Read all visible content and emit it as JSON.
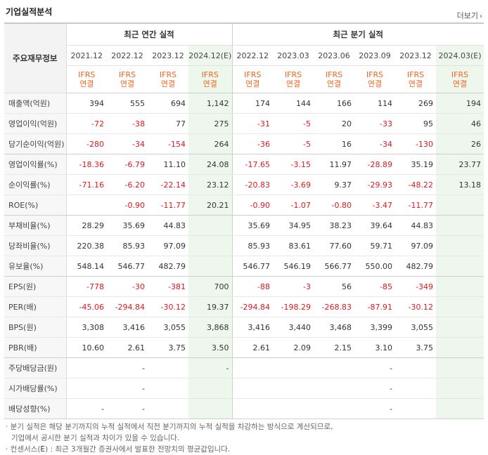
{
  "section_title": "기업실적분석",
  "more_label": "더보기",
  "corner_label": "주요재무정보",
  "groups": {
    "annual": "최근 연간 실적",
    "quarter": "최근 분기 실적"
  },
  "periods": [
    "2021.12",
    "2022.12",
    "2023.12",
    "2024.12(E)",
    "2022.12",
    "2023.03",
    "2023.06",
    "2023.09",
    "2023.12",
    "2024.03(E)"
  ],
  "basis": {
    "line1": "IFRS",
    "line2": "연결"
  },
  "rows": [
    {
      "label": "매출액(억원)",
      "values": [
        "394",
        "555",
        "694",
        "1,142",
        "174",
        "144",
        "166",
        "114",
        "269",
        "194"
      ]
    },
    {
      "label": "영업이익(억원)",
      "values": [
        "-72",
        "-38",
        "77",
        "275",
        "-31",
        "-5",
        "20",
        "-33",
        "95",
        "46"
      ]
    },
    {
      "label": "당기순이익(억원)",
      "values": [
        "-280",
        "-34",
        "-154",
        "264",
        "-36",
        "-5",
        "16",
        "-34",
        "-130",
        "26"
      ]
    },
    {
      "label": "영업이익률(%)",
      "values": [
        "-18.36",
        "-6.79",
        "11.10",
        "24.08",
        "-17.65",
        "-3.15",
        "11.97",
        "-28.89",
        "35.19",
        "23.77"
      ]
    },
    {
      "label": "순이익률(%)",
      "values": [
        "-71.16",
        "-6.20",
        "-22.14",
        "23.12",
        "-20.83",
        "-3.69",
        "9.37",
        "-29.93",
        "-48.22",
        "13.18"
      ]
    },
    {
      "label": "ROE(%)",
      "values": [
        "",
        "-0.90",
        "-11.77",
        "20.21",
        "-0.90",
        "-1.07",
        "-0.80",
        "-3.47",
        "-11.77",
        ""
      ]
    },
    {
      "label": "부채비율(%)",
      "values": [
        "28.29",
        "35.69",
        "44.83",
        "",
        "35.69",
        "34.95",
        "38.23",
        "39.64",
        "44.83",
        ""
      ]
    },
    {
      "label": "당좌비율(%)",
      "values": [
        "220.38",
        "85.93",
        "97.09",
        "",
        "85.93",
        "83.61",
        "77.60",
        "59.71",
        "97.09",
        ""
      ]
    },
    {
      "label": "유보율(%)",
      "values": [
        "548.14",
        "546.77",
        "482.79",
        "",
        "546.77",
        "546.19",
        "566.77",
        "550.00",
        "482.79",
        ""
      ]
    },
    {
      "label": "EPS(원)",
      "values": [
        "-778",
        "-30",
        "-381",
        "700",
        "-88",
        "-3",
        "56",
        "-85",
        "-349",
        ""
      ]
    },
    {
      "label": "PER(배)",
      "values": [
        "-45.06",
        "-294.84",
        "-30.12",
        "19.37",
        "-294.84",
        "-198.29",
        "-268.83",
        "-87.91",
        "-30.12",
        ""
      ]
    },
    {
      "label": "BPS(원)",
      "values": [
        "3,308",
        "3,416",
        "3,055",
        "3,868",
        "3,416",
        "3,440",
        "3,468",
        "3,399",
        "3,055",
        ""
      ]
    },
    {
      "label": "PBR(배)",
      "values": [
        "10.60",
        "2.61",
        "3.75",
        "3.50",
        "2.61",
        "2.09",
        "2.15",
        "3.10",
        "3.75",
        ""
      ]
    },
    {
      "label": "주당배당금(원)",
      "values": [
        "",
        "-",
        "",
        "-",
        "",
        "",
        "",
        "-",
        "",
        ""
      ]
    },
    {
      "label": "시가배당률(%)",
      "values": [
        "",
        "-",
        "",
        "",
        "",
        "",
        "",
        "-",
        "",
        ""
      ]
    },
    {
      "label": "배당성향(%)",
      "values": [
        "-",
        "-",
        "",
        "",
        "",
        "",
        "",
        "-",
        "",
        ""
      ]
    }
  ],
  "group_end_rows": [
    2,
    5,
    8,
    12
  ],
  "notes": {
    "line1": "· 분기 실적은 해당 분기까지의 누적 실적에서 직전 분기까지의 누적 실적을 차감하는 방식으로 계산되므로,",
    "line2": "기업에서 공시한 분기 실적과 차이가 있을 수 있습니다.",
    "line3_prefix": "· 컨센서스(",
    "line3_e": "E",
    "line3_suffix": ") : 최근 3개월간 증권사에서 발표한 전망치의 평균값입니다."
  }
}
